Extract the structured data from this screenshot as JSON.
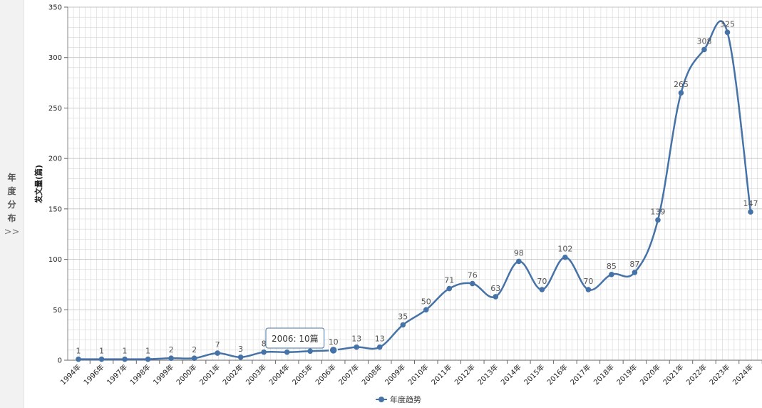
{
  "side_tab": {
    "label": "年度分布",
    "arrows": ">>"
  },
  "tooltip": {
    "text": "2006: 10篇",
    "category": "2006年"
  },
  "colors": {
    "line": "#4572a7",
    "grid": "#d6d6d6",
    "sidebar": "#f2f2f2"
  },
  "chart_data": {
    "type": "line",
    "title": "",
    "xlabel": "",
    "ylabel": "发文量(篇)",
    "ylim": [
      0,
      350
    ],
    "yticks": [
      0,
      50,
      100,
      150,
      200,
      250,
      300,
      350
    ],
    "grid": true,
    "smooth": true,
    "legend_position": "bottom-center",
    "categories": [
      "1994年",
      "1996年",
      "1997年",
      "1998年",
      "1999年",
      "2000年",
      "2001年",
      "2002年",
      "2003年",
      "2004年",
      "2005年",
      "2006年",
      "2007年",
      "2008年",
      "2009年",
      "2010年",
      "2011年",
      "2012年",
      "2013年",
      "2014年",
      "2015年",
      "2016年",
      "2017年",
      "2018年",
      "2019年",
      "2020年",
      "2021年",
      "2022年",
      "2023年",
      "2024年"
    ],
    "series": [
      {
        "name": "年度趋势",
        "values": [
          1,
          1,
          1,
          1,
          2,
          2,
          7,
          3,
          8,
          8,
          9,
          10,
          13,
          13,
          35,
          50,
          71,
          76,
          63,
          98,
          70,
          102,
          70,
          85,
          87,
          139,
          265,
          308,
          325,
          147
        ]
      }
    ]
  }
}
